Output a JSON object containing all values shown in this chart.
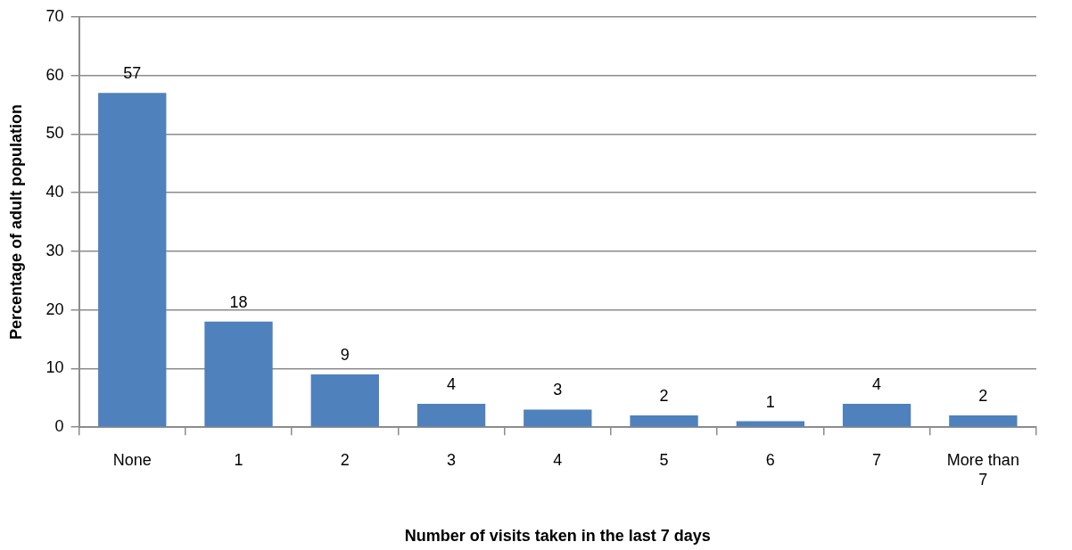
{
  "chart_data": {
    "type": "bar",
    "xlabel": "Number of visits taken in the last 7 days",
    "ylabel": "Percentage of adult population",
    "categories": [
      "None",
      "1",
      "2",
      "3",
      "4",
      "5",
      "6",
      "7",
      "More than 7"
    ],
    "values": [
      57,
      18,
      9,
      4,
      3,
      2,
      1,
      4,
      2
    ],
    "color": "#4f81bd",
    "ylim": [
      0,
      70
    ],
    "yticks": [
      0,
      10,
      20,
      30,
      40,
      50,
      60,
      70
    ],
    "grid": "y",
    "data_labels": true
  }
}
